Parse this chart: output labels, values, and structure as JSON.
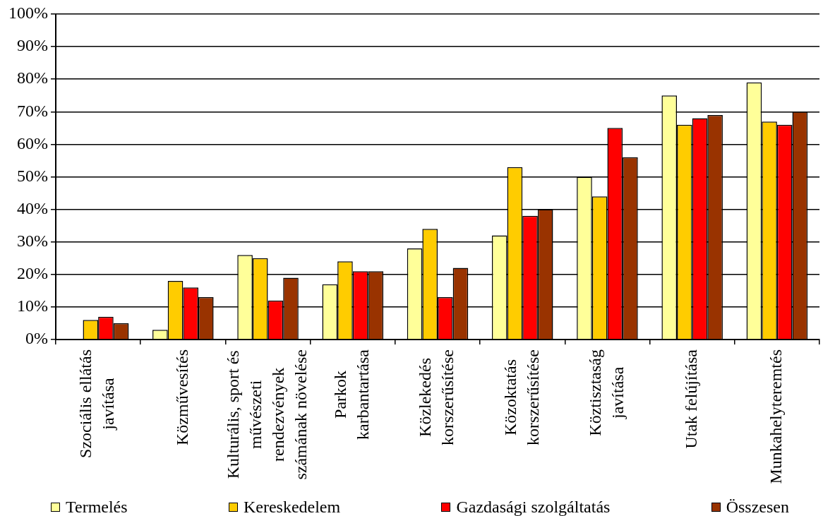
{
  "chart_data": {
    "type": "bar",
    "categories": [
      "Szociális ellátás javítása",
      "Közművesítés",
      "Kulturális, sport és művészeti rendezvények számának növelése",
      "Parkok karbantartása",
      "Közlekedés korszerűsítése",
      "Közoktatás korszerűsítése",
      "Köztisztaság javítása",
      "Utak felújítása",
      "Munkahelyteremtés"
    ],
    "series": [
      {
        "name": "Termelés",
        "color": "#ffff99",
        "values": [
          0,
          3,
          26,
          17,
          28,
          32,
          50,
          75,
          79
        ]
      },
      {
        "name": "Kereskedelem",
        "color": "#ffcc00",
        "values": [
          6,
          18,
          25,
          24,
          34,
          53,
          44,
          66,
          67
        ]
      },
      {
        "name": "Gazdasági szolgáltatás",
        "color": "#ff0000",
        "values": [
          7,
          16,
          12,
          21,
          13,
          38,
          65,
          68,
          66
        ]
      },
      {
        "name": "Összesen",
        "color": "#993300",
        "values": [
          5,
          13,
          19,
          21,
          22,
          40,
          56,
          69,
          70
        ]
      }
    ],
    "ylim": [
      0,
      100
    ],
    "yticks": [
      {
        "value": 0,
        "label": "0%"
      },
      {
        "value": 10,
        "label": "10%"
      },
      {
        "value": 20,
        "label": "20%"
      },
      {
        "value": 30,
        "label": "30%"
      },
      {
        "value": 40,
        "label": "40%"
      },
      {
        "value": 50,
        "label": "50%"
      },
      {
        "value": 60,
        "label": "60%"
      },
      {
        "value": 70,
        "label": "70%"
      },
      {
        "value": 80,
        "label": "80%"
      },
      {
        "value": 90,
        "label": "90%"
      },
      {
        "value": 100,
        "label": "100%"
      }
    ],
    "grid": "y",
    "legend": "bottom"
  }
}
